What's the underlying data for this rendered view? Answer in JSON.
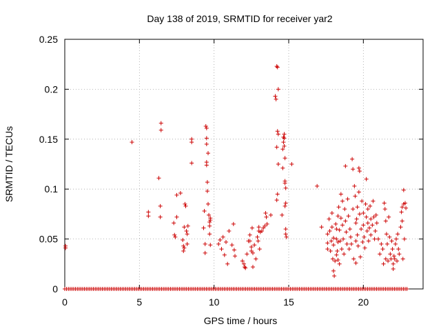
{
  "chart_data": {
    "type": "scatter",
    "title": "Day 138 of 2019, SRMTID for receiver yar2",
    "xlabel": "GPS time / hours",
    "ylabel": "SRMTID / TECUs",
    "xlim": [
      0,
      24
    ],
    "ylim": [
      0,
      0.25
    ],
    "xticks": [
      0,
      5,
      10,
      15,
      20
    ],
    "yticks": [
      0,
      0.05,
      0.1,
      0.15,
      0.2,
      0.25
    ],
    "ytick_labels": [
      "0",
      "0.05",
      "0.1",
      "0.15",
      "0.2",
      "0.25"
    ],
    "grid": true,
    "marker": "+",
    "marker_color": "#cc0000",
    "series": [
      {
        "name": "SRMTID",
        "points": [
          [
            0.05,
            0.043
          ],
          [
            0.05,
            0.041
          ],
          [
            4.5,
            0.147
          ],
          [
            5.6,
            0.077
          ],
          [
            5.6,
            0.073
          ],
          [
            6.3,
            0.111
          ],
          [
            6.4,
            0.083
          ],
          [
            6.4,
            0.072
          ],
          [
            6.45,
            0.166
          ],
          [
            6.45,
            0.159
          ],
          [
            7.3,
            0.066
          ],
          [
            7.35,
            0.054
          ],
          [
            7.4,
            0.052
          ],
          [
            7.5,
            0.094
          ],
          [
            7.5,
            0.072
          ],
          [
            7.75,
            0.096
          ],
          [
            7.9,
            0.049
          ],
          [
            7.95,
            0.043
          ],
          [
            7.95,
            0.038
          ],
          [
            8.0,
            0.041
          ],
          [
            8.0,
            0.062
          ],
          [
            8.05,
            0.085
          ],
          [
            8.1,
            0.083
          ],
          [
            8.15,
            0.058
          ],
          [
            8.2,
            0.055
          ],
          [
            8.25,
            0.063
          ],
          [
            8.2,
            0.045
          ],
          [
            8.5,
            0.15
          ],
          [
            8.5,
            0.147
          ],
          [
            8.5,
            0.126
          ],
          [
            9.3,
            0.061
          ],
          [
            9.35,
            0.078
          ],
          [
            9.4,
            0.045
          ],
          [
            9.4,
            0.036
          ],
          [
            9.45,
            0.163
          ],
          [
            9.5,
            0.161
          ],
          [
            9.5,
            0.151
          ],
          [
            9.5,
            0.145
          ],
          [
            9.5,
            0.127
          ],
          [
            9.5,
            0.124
          ],
          [
            9.55,
            0.107
          ],
          [
            9.55,
            0.098
          ],
          [
            9.6,
            0.136
          ],
          [
            9.6,
            0.085
          ],
          [
            9.65,
            0.074
          ],
          [
            9.7,
            0.067
          ],
          [
            9.7,
            0.063
          ],
          [
            9.75,
            0.071
          ],
          [
            9.75,
            0.069
          ],
          [
            9.7,
            0.055
          ],
          [
            9.75,
            0.044
          ],
          [
            10.3,
            0.045
          ],
          [
            10.4,
            0.049
          ],
          [
            10.5,
            0.04
          ],
          [
            10.6,
            0.052
          ],
          [
            10.7,
            0.034
          ],
          [
            10.8,
            0.047
          ],
          [
            10.9,
            0.025
          ],
          [
            11.0,
            0.058
          ],
          [
            11.2,
            0.044
          ],
          [
            11.3,
            0.065
          ],
          [
            11.35,
            0.039
          ],
          [
            11.4,
            0.033
          ],
          [
            11.9,
            0.028
          ],
          [
            12.0,
            0.025
          ],
          [
            12.05,
            0.022
          ],
          [
            12.1,
            0.021
          ],
          [
            12.2,
            0.035
          ],
          [
            12.3,
            0.048
          ],
          [
            12.4,
            0.048
          ],
          [
            12.4,
            0.054
          ],
          [
            12.5,
            0.042
          ],
          [
            12.5,
            0.038
          ],
          [
            12.55,
            0.061
          ],
          [
            12.6,
            0.036
          ],
          [
            12.6,
            0.022
          ],
          [
            12.7,
            0.044
          ],
          [
            12.8,
            0.03
          ],
          [
            12.9,
            0.052
          ],
          [
            12.95,
            0.048
          ],
          [
            13.0,
            0.058
          ],
          [
            13.0,
            0.062
          ],
          [
            13.05,
            0.04
          ],
          [
            13.1,
            0.057
          ],
          [
            13.2,
            0.058
          ],
          [
            13.3,
            0.061
          ],
          [
            13.4,
            0.063
          ],
          [
            13.45,
            0.076
          ],
          [
            13.5,
            0.072
          ],
          [
            13.55,
            0.065
          ],
          [
            13.8,
            0.074
          ],
          [
            14.1,
            0.193
          ],
          [
            14.15,
            0.19
          ],
          [
            14.2,
            0.223
          ],
          [
            14.25,
            0.222
          ],
          [
            14.2,
            0.142
          ],
          [
            14.25,
            0.158
          ],
          [
            14.3,
            0.155
          ],
          [
            14.3,
            0.2
          ],
          [
            14.3,
            0.125
          ],
          [
            14.25,
            0.095
          ],
          [
            14.2,
            0.089
          ],
          [
            14.6,
            0.121
          ],
          [
            14.6,
            0.14
          ],
          [
            14.65,
            0.147
          ],
          [
            14.65,
            0.152
          ],
          [
            14.7,
            0.143
          ],
          [
            14.7,
            0.151
          ],
          [
            14.7,
            0.155
          ],
          [
            14.75,
            0.131
          ],
          [
            14.75,
            0.108
          ],
          [
            14.75,
            0.106
          ],
          [
            14.8,
            0.086
          ],
          [
            14.75,
            0.083
          ],
          [
            14.8,
            0.06
          ],
          [
            14.8,
            0.055
          ],
          [
            14.85,
            0.052
          ],
          [
            14.8,
            0.101
          ],
          [
            14.55,
            0.074
          ],
          [
            15.2,
            0.125
          ],
          [
            16.9,
            0.103
          ],
          [
            17.2,
            0.062
          ],
          [
            17.6,
            0.055
          ],
          [
            17.6,
            0.046
          ],
          [
            17.6,
            0.04
          ],
          [
            17.7,
            0.07
          ],
          [
            17.75,
            0.058
          ],
          [
            17.8,
            0.038
          ],
          [
            17.85,
            0.048
          ],
          [
            17.9,
            0.076
          ],
          [
            17.9,
            0.062
          ],
          [
            17.95,
            0.03
          ],
          [
            18.0,
            0.051
          ],
          [
            18.0,
            0.044
          ],
          [
            18.0,
            0.018
          ],
          [
            18.05,
            0.013
          ],
          [
            18.1,
            0.028
          ],
          [
            18.15,
            0.065
          ],
          [
            18.2,
            0.06
          ],
          [
            18.2,
            0.05
          ],
          [
            18.2,
            0.034
          ],
          [
            18.25,
            0.038
          ],
          [
            18.3,
            0.047
          ],
          [
            18.3,
            0.073
          ],
          [
            18.3,
            0.029
          ],
          [
            18.35,
            0.082
          ],
          [
            18.4,
            0.059
          ],
          [
            18.4,
            0.025
          ],
          [
            18.45,
            0.048
          ],
          [
            18.5,
            0.095
          ],
          [
            18.5,
            0.071
          ],
          [
            18.55,
            0.04
          ],
          [
            18.6,
            0.088
          ],
          [
            18.6,
            0.064
          ],
          [
            18.65,
            0.05
          ],
          [
            18.7,
            0.035
          ],
          [
            18.75,
            0.08
          ],
          [
            18.8,
            0.123
          ],
          [
            18.8,
            0.068
          ],
          [
            18.85,
            0.057
          ],
          [
            18.9,
            0.045
          ],
          [
            18.95,
            0.09
          ],
          [
            19.0,
            0.073
          ],
          [
            19.05,
            0.04
          ],
          [
            19.1,
            0.06
          ],
          [
            19.15,
            0.052
          ],
          [
            19.2,
            0.045
          ],
          [
            19.25,
            0.13
          ],
          [
            19.3,
            0.12
          ],
          [
            19.3,
            0.08
          ],
          [
            19.35,
            0.03
          ],
          [
            19.4,
            0.103
          ],
          [
            19.45,
            0.093
          ],
          [
            19.5,
            0.066
          ],
          [
            19.5,
            0.048
          ],
          [
            19.5,
            0.026
          ],
          [
            19.55,
            0.07
          ],
          [
            19.6,
            0.082
          ],
          [
            19.6,
            0.054
          ],
          [
            19.65,
            0.043
          ],
          [
            19.7,
            0.121
          ],
          [
            19.7,
            0.097
          ],
          [
            19.75,
            0.118
          ],
          [
            19.75,
            0.075
          ],
          [
            19.8,
            0.032
          ],
          [
            19.85,
            0.06
          ],
          [
            19.9,
            0.088
          ],
          [
            19.95,
            0.047
          ],
          [
            20.0,
            0.076
          ],
          [
            20.0,
            0.064
          ],
          [
            20.05,
            0.052
          ],
          [
            20.1,
            0.041
          ],
          [
            20.15,
            0.085
          ],
          [
            20.2,
            0.11
          ],
          [
            20.2,
            0.072
          ],
          [
            20.25,
            0.058
          ],
          [
            20.3,
            0.08
          ],
          [
            20.3,
            0.066
          ],
          [
            20.35,
            0.048
          ],
          [
            20.4,
            0.061
          ],
          [
            20.45,
            0.083
          ],
          [
            20.5,
            0.07
          ],
          [
            20.5,
            0.054
          ],
          [
            20.6,
            0.064
          ],
          [
            20.65,
            0.088
          ],
          [
            20.7,
            0.072
          ],
          [
            20.75,
            0.05
          ],
          [
            20.8,
            0.058
          ],
          [
            20.85,
            0.074
          ],
          [
            20.9,
            0.066
          ],
          [
            21.0,
            0.05
          ],
          [
            21.1,
            0.035
          ],
          [
            21.2,
            0.045
          ],
          [
            21.3,
            0.04
          ],
          [
            21.35,
            0.025
          ],
          [
            21.4,
            0.086
          ],
          [
            21.45,
            0.08
          ],
          [
            21.5,
            0.068
          ],
          [
            21.5,
            0.03
          ],
          [
            21.55,
            0.055
          ],
          [
            21.6,
            0.045
          ],
          [
            21.65,
            0.028
          ],
          [
            21.7,
            0.072
          ],
          [
            21.75,
            0.052
          ],
          [
            21.8,
            0.035
          ],
          [
            21.85,
            0.03
          ],
          [
            21.9,
            0.048
          ],
          [
            21.95,
            0.04
          ],
          [
            22.0,
            0.025
          ],
          [
            22.0,
            0.02
          ],
          [
            22.05,
            0.033
          ],
          [
            22.1,
            0.03
          ],
          [
            22.15,
            0.045
          ],
          [
            22.2,
            0.05
          ],
          [
            22.25,
            0.028
          ],
          [
            22.3,
            0.055
          ],
          [
            22.35,
            0.04
          ],
          [
            22.4,
            0.035
          ],
          [
            22.5,
            0.062
          ],
          [
            22.55,
            0.077
          ],
          [
            22.6,
            0.082
          ],
          [
            22.6,
            0.068
          ],
          [
            22.65,
            0.03
          ],
          [
            22.7,
            0.085
          ],
          [
            22.7,
            0.099
          ],
          [
            22.75,
            0.05
          ],
          [
            22.8,
            0.086
          ],
          [
            22.85,
            0.081
          ]
        ],
        "zero_line_points": [
          0,
          23.0,
          0.12
        ]
      }
    ]
  }
}
